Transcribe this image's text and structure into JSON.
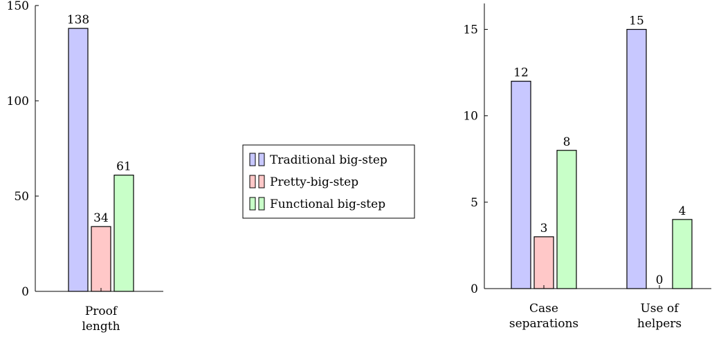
{
  "chart_data": [
    {
      "type": "bar",
      "categories": [
        [
          "Proof",
          "length"
        ]
      ],
      "series": [
        {
          "name": "Traditional big-step",
          "values": [
            138
          ]
        },
        {
          "name": "Pretty-big-step",
          "values": [
            34
          ]
        },
        {
          "name": "Functional big-step",
          "values": [
            61
          ]
        }
      ],
      "yticks": [
        0,
        50,
        100,
        150
      ],
      "ylim": [
        0,
        150
      ],
      "grid": false,
      "legend": "none"
    },
    {
      "type": "bar",
      "categories": [
        [
          "Case",
          "separations"
        ],
        [
          "Use of",
          "helpers"
        ]
      ],
      "series": [
        {
          "name": "Traditional big-step",
          "values": [
            12,
            15
          ]
        },
        {
          "name": "Pretty-big-step",
          "values": [
            3,
            0
          ]
        },
        {
          "name": "Functional big-step",
          "values": [
            8,
            4
          ]
        }
      ],
      "yticks": [
        0,
        5,
        10,
        15
      ],
      "ylim": [
        0,
        16.5
      ],
      "grid": false,
      "legend": "none"
    }
  ],
  "legend": {
    "items": [
      {
        "label": "Traditional big-step",
        "fill": "#c8c8ff",
        "stroke": "#000000"
      },
      {
        "label": "Pretty-big-step",
        "fill": "#ffc8c8",
        "stroke": "#000000"
      },
      {
        "label": "Functional big-step",
        "fill": "#c8ffc8",
        "stroke": "#000000"
      }
    ]
  },
  "colors": {
    "series": [
      "#c8c8ff",
      "#ffc8c8",
      "#c8ffc8"
    ],
    "axis": "#000000"
  }
}
